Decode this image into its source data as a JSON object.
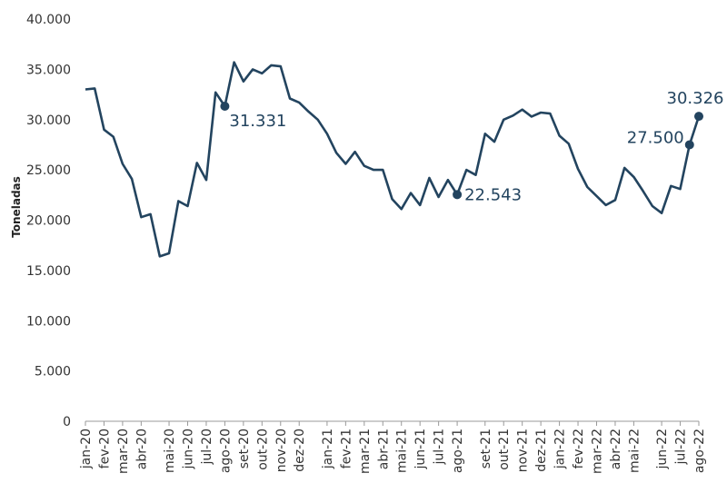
{
  "chart_data": {
    "type": "line",
    "y_label": "Toneladas",
    "color": "#23445f",
    "categories": [
      "jan-20",
      null,
      "fev-20",
      null,
      "mar-20",
      null,
      "abr-20",
      null,
      null,
      "mai-20",
      null,
      "jun-20",
      null,
      "jul-20",
      null,
      "ago-20",
      null,
      "set-20",
      null,
      "out-20",
      null,
      "nov-20",
      null,
      "dez-20",
      null,
      null,
      "jan-21",
      null,
      "fev-21",
      null,
      "mar-21",
      null,
      "abr-21",
      null,
      "mai-21",
      null,
      "jun-21",
      null,
      "jul-21",
      null,
      "ago-21",
      null,
      null,
      "set-21",
      null,
      "out-21",
      null,
      "nov-21",
      null,
      "dez-21",
      null,
      "jan-22",
      null,
      "fev-22",
      null,
      "mar-22",
      null,
      "abr-22",
      null,
      "mai-22",
      null,
      null,
      "jun-22",
      null,
      "jul-22",
      null,
      "ago-22"
    ],
    "values": [
      33000,
      33100,
      29000,
      28300,
      25600,
      24100,
      20300,
      20600,
      16400,
      16700,
      21900,
      21400,
      25700,
      24000,
      32700,
      31331,
      35700,
      33800,
      35000,
      34600,
      35400,
      35300,
      32100,
      31700,
      30800,
      30000,
      28600,
      26700,
      25600,
      26800,
      25400,
      25000,
      25000,
      22100,
      21100,
      22700,
      21500,
      24200,
      22300,
      24000,
      22543,
      25000,
      24500,
      28600,
      27800,
      30000,
      30400,
      31000,
      30300,
      30700,
      30600,
      28400,
      27600,
      25100,
      23300,
      22400,
      21500,
      22000,
      25200,
      24300,
      22900,
      21400,
      20700,
      23400,
      23100,
      27500,
      30326
    ],
    "value_labels": [
      null,
      null,
      null,
      null,
      null,
      null,
      null,
      null,
      null,
      null,
      null,
      null,
      null,
      null,
      null,
      "31.331",
      null,
      null,
      null,
      null,
      null,
      null,
      null,
      null,
      null,
      null,
      null,
      null,
      null,
      null,
      null,
      null,
      null,
      null,
      null,
      null,
      null,
      null,
      null,
      null,
      "22.543",
      null,
      null,
      null,
      null,
      null,
      null,
      null,
      null,
      null,
      null,
      null,
      null,
      null,
      null,
      null,
      null,
      null,
      null,
      null,
      null,
      null,
      null,
      null,
      null,
      "27.500",
      "30.326"
    ],
    "ylim": [
      0,
      40000
    ],
    "yticks": [
      0,
      {
        "value": 5000,
        "label": "5.000"
      },
      {
        "value": 10000,
        "label": "10.000"
      },
      {
        "value": 15000,
        "label": "15.000"
      },
      {
        "value": 20000,
        "label": "20.000"
      },
      {
        "value": 25000,
        "label": "25.000"
      },
      {
        "value": 30000,
        "label": "30.000"
      },
      {
        "value": 35000,
        "label": "35.000"
      },
      {
        "value": 40000,
        "label": "40.000"
      }
    ]
  }
}
